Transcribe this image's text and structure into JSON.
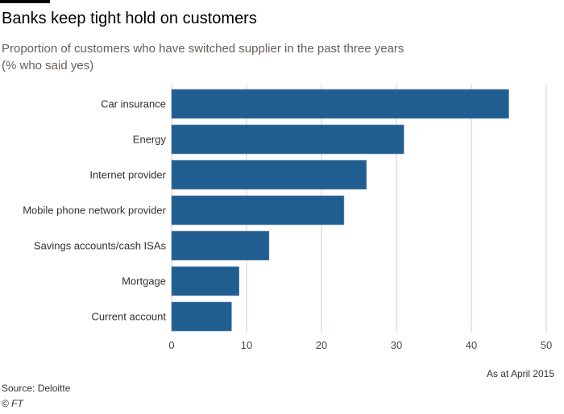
{
  "chart_data": {
    "type": "bar",
    "orientation": "horizontal",
    "title": "Banks keep tight hold on customers",
    "subtitle": "Proportion of customers who have switched supplier in the past three years",
    "subtitle2": "(% who said yes)",
    "categories": [
      "Car insurance",
      "Energy",
      "Internet provider",
      "Mobile phone network provider",
      "Savings accounts/cash ISAs",
      "Mortgage",
      "Current account"
    ],
    "values": [
      45,
      31,
      26,
      23,
      13,
      9,
      8
    ],
    "xlim": [
      0,
      50
    ],
    "xticks": [
      0,
      10,
      20,
      30,
      40,
      50
    ],
    "xlabel": "",
    "ylabel": "",
    "grid": true,
    "bar_color": "#205e91",
    "grid_color": "#e9dcd3",
    "date_note": "As at April 2015",
    "source": "Source: Deloitte",
    "copyright": "© FT"
  }
}
